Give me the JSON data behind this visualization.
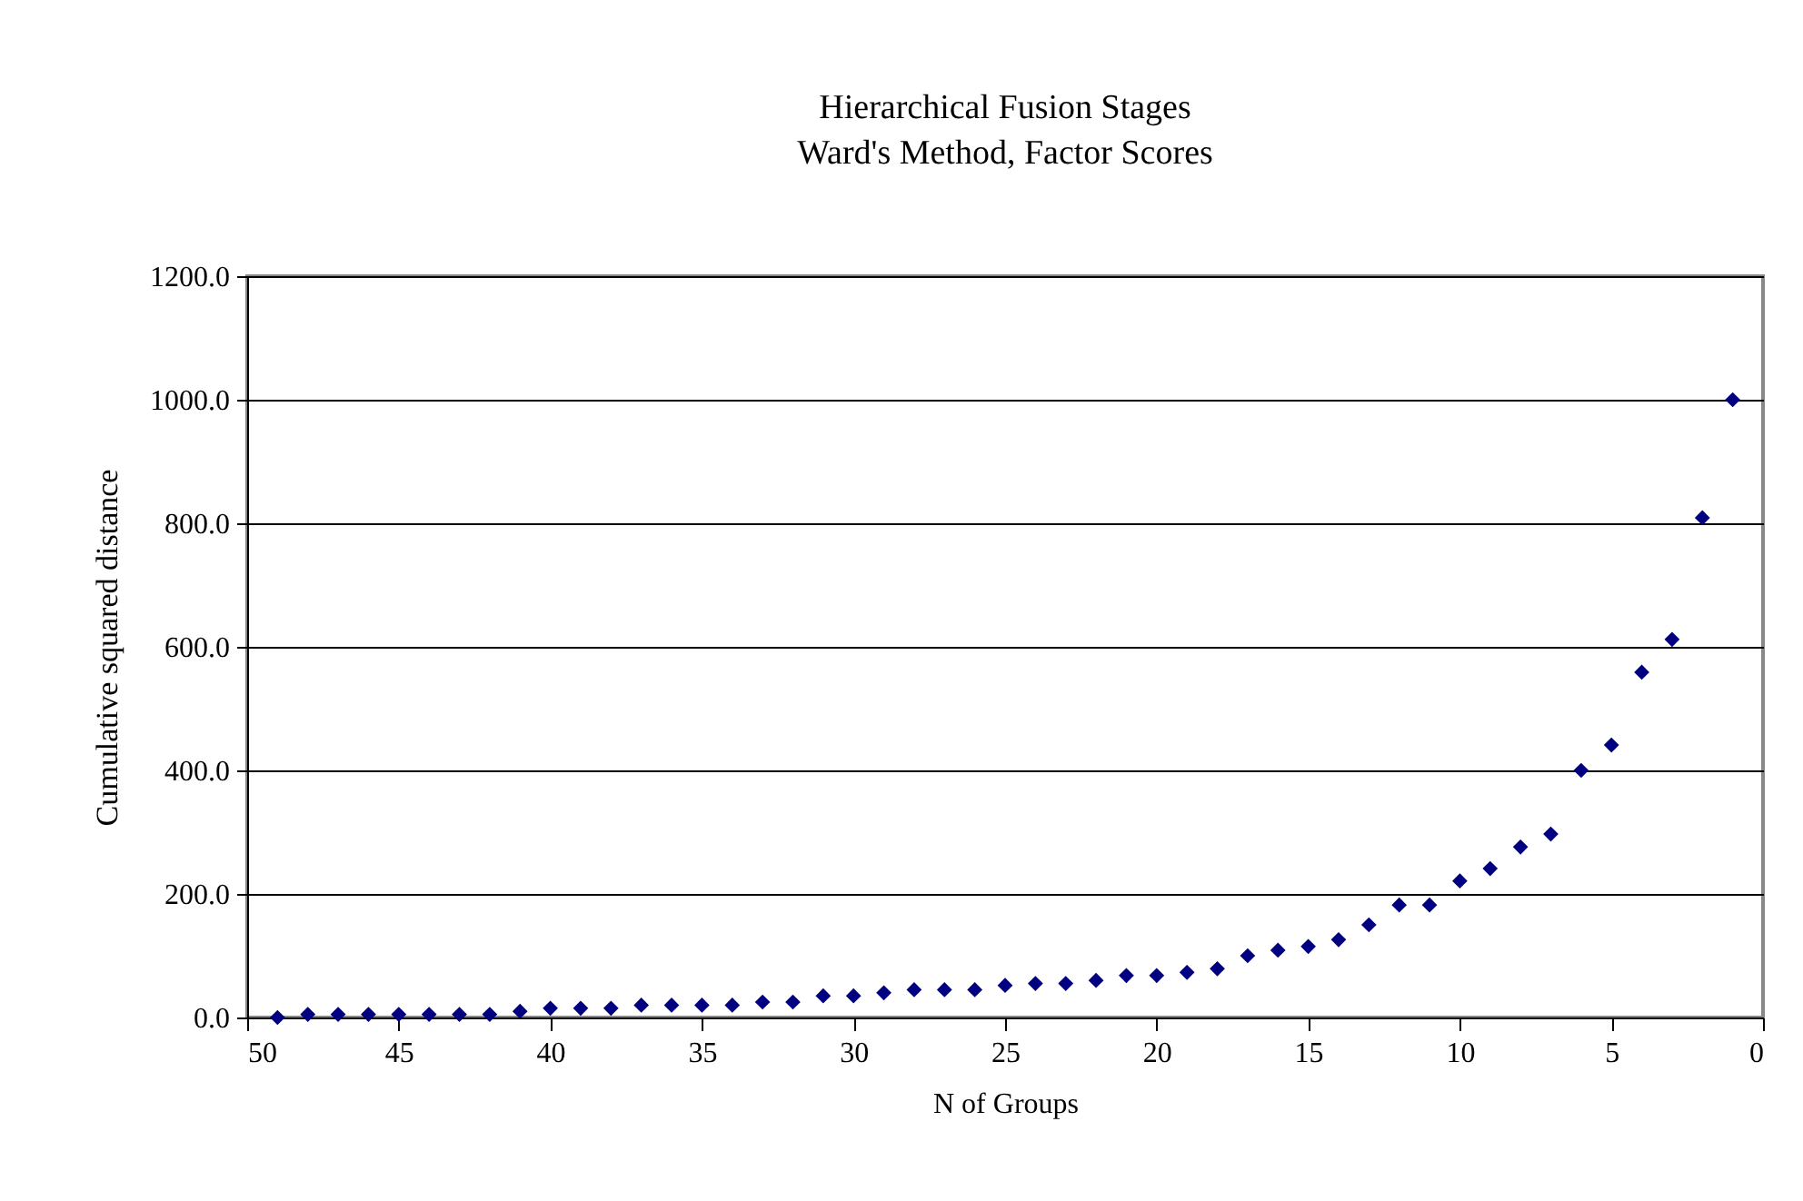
{
  "chart_data": {
    "type": "scatter",
    "title": "Hierarchical Fusion Stages",
    "subtitle": "Ward's Method, Factor Scores",
    "xlabel": "N of Groups",
    "ylabel": "Cumulative squared distance",
    "x": [
      49,
      48,
      47,
      46,
      45,
      44,
      43,
      42,
      41,
      40,
      39,
      38,
      37,
      36,
      35,
      34,
      33,
      32,
      31,
      30,
      29,
      28,
      27,
      26,
      25,
      24,
      23,
      22,
      21,
      20,
      19,
      18,
      17,
      16,
      15,
      14,
      13,
      12,
      11,
      10,
      9,
      8,
      7,
      6,
      5,
      4,
      3,
      2,
      1
    ],
    "series": [
      {
        "color": "#000080",
        "values": [
          0,
          5,
          5,
          5,
          5,
          5,
          5,
          5,
          10,
          15,
          15,
          15,
          20,
          20,
          20,
          20,
          25,
          25,
          35,
          35,
          40,
          45,
          45,
          45,
          52,
          55,
          55,
          60,
          68,
          68,
          73,
          79,
          100,
          109,
          115,
          126,
          150,
          182,
          182,
          221,
          241,
          276,
          297,
          400,
          441,
          559,
          612,
          809,
          1000
        ]
      }
    ],
    "xlim": [
      50,
      0
    ],
    "xticks": [
      50,
      45,
      40,
      35,
      30,
      25,
      20,
      15,
      10,
      5,
      0
    ],
    "ylim": [
      0,
      1200
    ],
    "yticks": [
      {
        "value": 0,
        "label": "0.0"
      },
      {
        "value": 200,
        "label": "200.0"
      },
      {
        "value": 400,
        "label": "400.0"
      },
      {
        "value": 600,
        "label": "600.0"
      },
      {
        "value": 800,
        "label": "800.0"
      },
      {
        "value": 1000,
        "label": "1000.0"
      },
      {
        "value": 1200,
        "label": "1200.0"
      }
    ],
    "grid": "y",
    "marker": "diamond"
  }
}
